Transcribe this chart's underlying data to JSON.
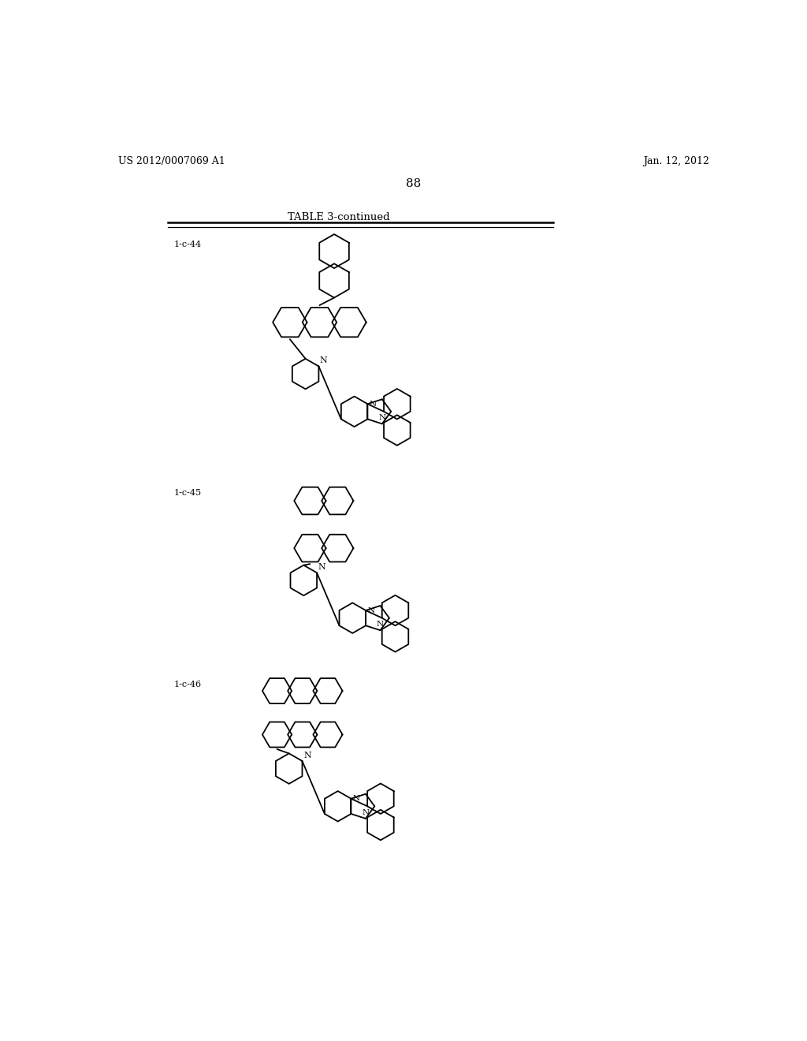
{
  "bg_color": "#ffffff",
  "header_left": "US 2012/0007069 A1",
  "header_right": "Jan. 12, 2012",
  "page_number": "88",
  "table_title": "TABLE 3-continued",
  "compound_labels": [
    "1-c-44",
    "1-c-45",
    "1-c-46"
  ],
  "figsize": [
    10.24,
    13.2
  ],
  "dpi": 100
}
